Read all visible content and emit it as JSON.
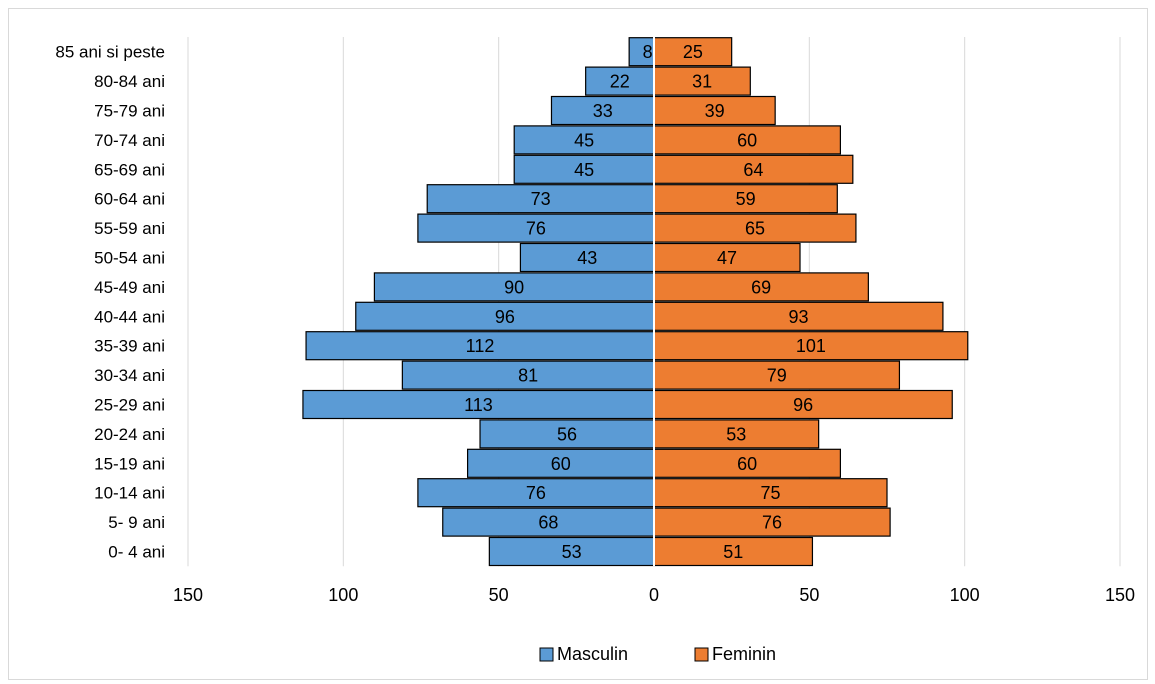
{
  "chart_data": {
    "type": "bar",
    "orientation": "horizontal",
    "layout": "population-pyramid",
    "categories": [
      "85 ani si peste",
      "80-84 ani",
      "75-79 ani",
      "70-74 ani",
      "65-69 ani",
      "60-64 ani",
      "55-59 ani",
      "50-54 ani",
      "45-49 ani",
      "40-44 ani",
      "35-39 ani",
      "30-34 ani",
      "25-29 ani",
      "20-24 ani",
      "15-19 ani",
      "10-14 ani",
      "5- 9 ani",
      "0- 4 ani"
    ],
    "series": [
      {
        "name": "Masculin",
        "side": "left",
        "color": "#5b9bd5",
        "values": [
          8,
          22,
          33,
          45,
          45,
          73,
          76,
          43,
          90,
          96,
          112,
          81,
          113,
          56,
          60,
          76,
          68,
          53
        ]
      },
      {
        "name": "Feminin",
        "side": "right",
        "color": "#ed7d31",
        "values": [
          25,
          31,
          39,
          60,
          64,
          59,
          65,
          47,
          69,
          93,
          101,
          79,
          96,
          53,
          60,
          75,
          76,
          51
        ]
      }
    ],
    "xlim": [
      -150,
      150
    ],
    "xticks": [
      -150,
      -100,
      -50,
      0,
      50,
      100,
      150
    ],
    "xtick_labels": [
      "150",
      "100",
      "50",
      "0",
      "50",
      "100",
      "150"
    ],
    "grid": "vertical",
    "legend": "bottom",
    "title": "",
    "xlabel": "",
    "ylabel": ""
  }
}
